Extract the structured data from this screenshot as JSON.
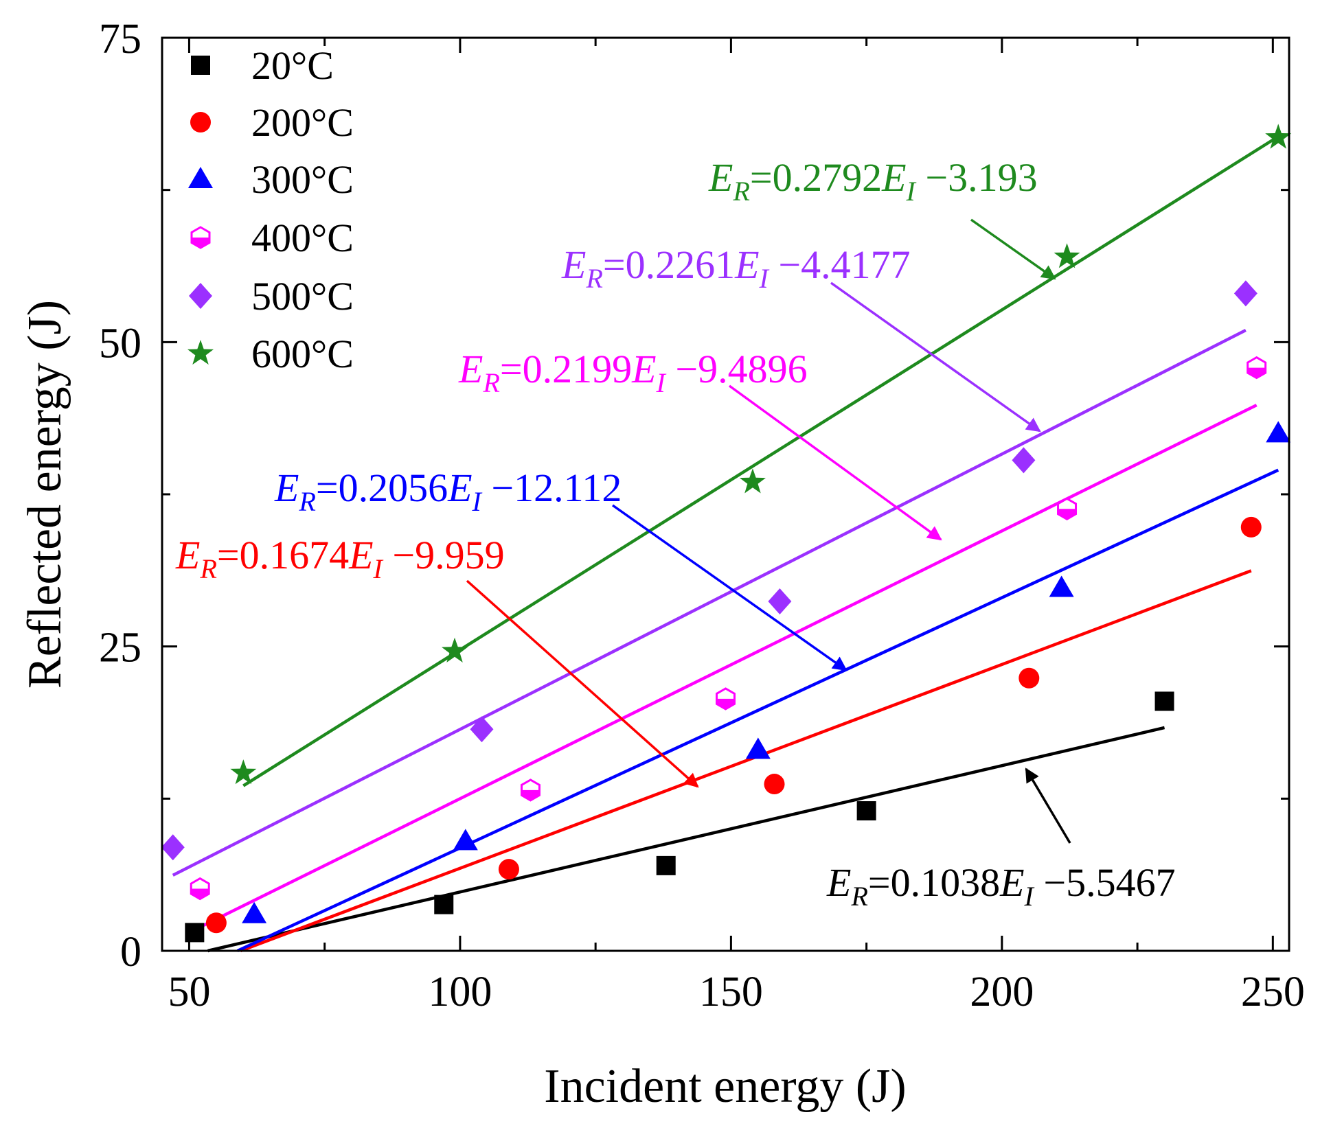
{
  "chart_data": {
    "type": "scatter",
    "title": "",
    "xlabel": "Incident energy (J)",
    "ylabel": "Reflected energy (J)",
    "xlim": [
      45,
      253
    ],
    "ylim": [
      0,
      75
    ],
    "x_ticks": [
      50,
      100,
      150,
      200,
      250
    ],
    "y_ticks": [
      0,
      25,
      50,
      75
    ],
    "x_tick_labels": [
      "50",
      "100",
      "150",
      "200",
      "250"
    ],
    "y_tick_labels": [
      "0",
      "25",
      "50",
      "75"
    ],
    "legend_position": "top-left",
    "series": [
      {
        "name": "20°C",
        "color": "#000000",
        "marker": "square",
        "points": [
          [
            51,
            1.5
          ],
          [
            97,
            3.8
          ],
          [
            138,
            7.0
          ],
          [
            175,
            11.5
          ],
          [
            230,
            20.5
          ]
        ],
        "fit": {
          "slope": 0.1038,
          "intercept": -5.5467,
          "x_range": [
            50,
            230
          ]
        },
        "equation": {
          "lhs": "E",
          "lhs_sub": "R",
          "mid": "=0.1038",
          "var": "E",
          "var_sub": "I",
          "rhs": " −5.5467"
        }
      },
      {
        "name": "200°C",
        "color": "#ff0000",
        "marker": "circle",
        "points": [
          [
            55,
            2.3
          ],
          [
            109,
            6.7
          ],
          [
            158,
            13.7
          ],
          [
            205,
            22.4
          ],
          [
            246,
            34.8
          ]
        ],
        "fit": {
          "slope": 0.1674,
          "intercept": -9.959,
          "x_range": [
            50,
            246
          ]
        },
        "equation": {
          "lhs": "E",
          "lhs_sub": "R",
          "mid": "=0.1674",
          "var": "E",
          "var_sub": "I",
          "rhs": " −9.959"
        }
      },
      {
        "name": "300°C",
        "color": "#0000ff",
        "marker": "triangle",
        "points": [
          [
            62,
            3.0
          ],
          [
            101,
            9.0
          ],
          [
            155,
            16.5
          ],
          [
            211,
            29.8
          ],
          [
            251,
            42.5
          ]
        ],
        "fit": {
          "slope": 0.2056,
          "intercept": -12.112,
          "x_range": [
            50,
            251
          ]
        },
        "equation": {
          "lhs": "E",
          "lhs_sub": "R",
          "mid": "=0.2056",
          "var": "E",
          "var_sub": "I",
          "rhs": " −12.112"
        }
      },
      {
        "name": "400°C",
        "color": "#ff00ff",
        "marker": "hexagon-half",
        "points": [
          [
            52,
            5.1
          ],
          [
            113,
            13.2
          ],
          [
            149,
            20.7
          ],
          [
            212,
            36.3
          ],
          [
            247,
            47.9
          ]
        ],
        "fit": {
          "slope": 0.2199,
          "intercept": -9.4896,
          "x_range": [
            52,
            247
          ]
        },
        "equation": {
          "lhs": "E",
          "lhs_sub": "R",
          "mid": "=0.2199",
          "var": "E",
          "var_sub": "I",
          "rhs": " −9.4896"
        }
      },
      {
        "name": "500°C",
        "color": "#9b30ff",
        "marker": "diamond",
        "points": [
          [
            47,
            8.5
          ],
          [
            104,
            18.2
          ],
          [
            159,
            28.7
          ],
          [
            204,
            40.3
          ],
          [
            245,
            54.0
          ]
        ],
        "fit": {
          "slope": 0.2261,
          "intercept": -4.4177,
          "x_range": [
            47,
            245
          ]
        },
        "equation": {
          "lhs": "E",
          "lhs_sub": "R",
          "mid": "=0.2261",
          "var": "E",
          "var_sub": "I",
          "rhs": " −4.4177"
        }
      },
      {
        "name": "600°C",
        "color": "#1e8a1e",
        "marker": "star",
        "points": [
          [
            60,
            14.6
          ],
          [
            99,
            24.6
          ],
          [
            154,
            38.5
          ],
          [
            212,
            57.0
          ],
          [
            251,
            66.8
          ]
        ],
        "fit": {
          "slope": 0.2792,
          "intercept": -3.193,
          "x_range": [
            60,
            251
          ]
        },
        "equation": {
          "lhs": "E",
          "lhs_sub": "R",
          "mid": "=0.2792",
          "var": "E",
          "var_sub": "I",
          "rhs": " −3.193"
        }
      }
    ]
  }
}
